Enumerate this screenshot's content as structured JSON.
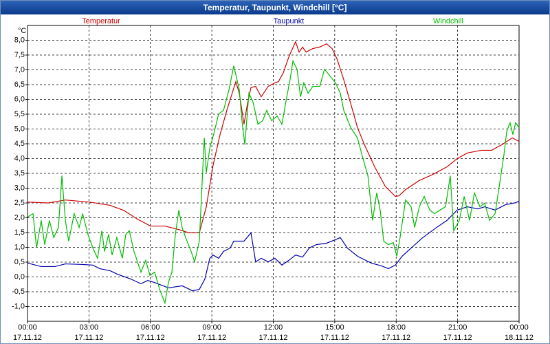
{
  "chart_data": {
    "type": "line",
    "title": "Temperatur, Taupunkt, Windchill [°C]",
    "ylabel": "°C",
    "ylim": [
      -1.5,
      8.5
    ],
    "yticks": [
      {
        "value": -1,
        "label": "-1,0"
      },
      {
        "value": -0.5,
        "label": "-0,5"
      },
      {
        "value": 0,
        "label": "0,0"
      },
      {
        "value": 0.5,
        "label": "0,5"
      },
      {
        "value": 1,
        "label": "1,0"
      },
      {
        "value": 1.5,
        "label": "1,5"
      },
      {
        "value": 2,
        "label": "2,0"
      },
      {
        "value": 2.5,
        "label": "2,5"
      },
      {
        "value": 3,
        "label": "3,0"
      },
      {
        "value": 3.5,
        "label": "3,5"
      },
      {
        "value": 4,
        "label": "4,0"
      },
      {
        "value": 4.5,
        "label": "4,5"
      },
      {
        "value": 5,
        "label": "5,0"
      },
      {
        "value": 5.5,
        "label": "5,5"
      },
      {
        "value": 6,
        "label": "6,0"
      },
      {
        "value": 6.5,
        "label": "6,5"
      },
      {
        "value": 7,
        "label": "7,0"
      },
      {
        "value": 7.5,
        "label": "7,5"
      },
      {
        "value": 8,
        "label": "8,0"
      }
    ],
    "xlim": [
      0,
      24
    ],
    "xticks": [
      {
        "value": 0,
        "label": "00:00",
        "date": "17.11.12"
      },
      {
        "value": 3,
        "label": "03:00",
        "date": "17.11.12"
      },
      {
        "value": 6,
        "label": "06:00",
        "date": "17.11.12"
      },
      {
        "value": 9,
        "label": "09:00",
        "date": "17.11.12"
      },
      {
        "value": 12,
        "label": "12:00",
        "date": "17.11.12"
      },
      {
        "value": 15,
        "label": "15:00",
        "date": "17.11.12"
      },
      {
        "value": 18,
        "label": "18:00",
        "date": "17.11.12"
      },
      {
        "value": 21,
        "label": "21:00",
        "date": "17.11.12"
      },
      {
        "value": 24,
        "label": "00:00",
        "date": "18.11.12"
      }
    ],
    "grid": true,
    "series": [
      {
        "name": "Temperatur",
        "color": "#cc0000",
        "x": [
          0,
          1.01,
          1.85,
          3.02,
          4.03,
          4.7,
          5.37,
          6.01,
          6.71,
          7.39,
          7.89,
          8.39,
          8.73,
          9.06,
          9.4,
          9.73,
          10.17,
          10.34,
          10.57,
          10.74,
          10.91,
          11.14,
          11.41,
          11.75,
          12.08,
          12.25,
          12.49,
          12.76,
          13.09,
          13.26,
          13.43,
          13.6,
          13.93,
          14.27,
          14.6,
          14.87,
          15.11,
          15.44,
          15.78,
          16.11,
          16.45,
          16.95,
          17.46,
          17.96,
          18.13,
          18.46,
          19.13,
          19.81,
          20.48,
          20.98,
          21.48,
          22.16,
          22.66,
          23.16,
          23.67,
          24.0
        ],
        "values": [
          2.53,
          2.5,
          2.6,
          2.53,
          2.42,
          2.25,
          1.95,
          1.72,
          1.72,
          1.6,
          1.49,
          1.49,
          2.37,
          3.77,
          4.81,
          5.63,
          6.6,
          6.21,
          5.16,
          5.86,
          6.4,
          6.44,
          6.09,
          6.44,
          6.56,
          6.6,
          6.9,
          7.44,
          7.95,
          7.6,
          7.77,
          7.6,
          7.72,
          7.77,
          7.88,
          7.72,
          7.37,
          6.67,
          5.86,
          5.05,
          4.47,
          3.72,
          3.07,
          2.72,
          2.74,
          2.95,
          3.26,
          3.47,
          3.72,
          4.0,
          4.19,
          4.28,
          4.28,
          4.47,
          4.7,
          4.58
        ]
      },
      {
        "name": "Taupunkt",
        "color": "#0000aa",
        "x": [
          0,
          0.67,
          1.34,
          1.85,
          2.69,
          3.19,
          3.52,
          4.03,
          4.36,
          5.04,
          5.54,
          5.87,
          6.21,
          6.88,
          7.55,
          8.06,
          8.39,
          8.66,
          8.9,
          9.06,
          9.33,
          9.57,
          9.9,
          10.07,
          10.57,
          10.91,
          11.14,
          11.41,
          11.75,
          12.08,
          12.42,
          12.76,
          13.09,
          13.43,
          13.76,
          14.1,
          14.6,
          15.11,
          15.27,
          15.61,
          16.11,
          16.78,
          17.29,
          17.62,
          17.96,
          18.29,
          18.8,
          19.3,
          19.97,
          20.48,
          20.98,
          21.48,
          21.99,
          22.32,
          22.83,
          23.33,
          23.84,
          24.0
        ],
        "values": [
          0.47,
          0.35,
          0.35,
          0.44,
          0.42,
          0.4,
          0.28,
          0.21,
          0.1,
          -0.07,
          -0.23,
          -0.12,
          -0.19,
          -0.37,
          -0.3,
          -0.47,
          -0.42,
          -0.07,
          0.63,
          0.74,
          0.63,
          0.86,
          0.98,
          1.21,
          1.21,
          1.49,
          0.51,
          0.63,
          0.51,
          0.63,
          0.4,
          0.56,
          0.74,
          0.67,
          0.98,
          1.09,
          1.14,
          1.28,
          1.33,
          0.98,
          0.7,
          0.47,
          0.37,
          0.28,
          0.4,
          0.7,
          1.02,
          1.33,
          1.67,
          1.91,
          2.26,
          2.37,
          2.3,
          2.37,
          2.26,
          2.44,
          2.51,
          2.56
        ]
      },
      {
        "name": "Windchill",
        "color": "#00bb00",
        "x": [
          0,
          0.27,
          0.44,
          0.67,
          0.84,
          1.07,
          1.28,
          1.51,
          1.68,
          1.85,
          2.01,
          2.28,
          2.52,
          2.69,
          2.95,
          3.19,
          3.42,
          3.63,
          3.76,
          3.96,
          4.13,
          4.36,
          4.63,
          4.8,
          4.97,
          5.2,
          5.37,
          5.54,
          5.77,
          5.98,
          6.21,
          6.45,
          6.71,
          6.88,
          7.05,
          7.22,
          7.39,
          7.55,
          7.72,
          7.99,
          8.16,
          8.39,
          8.63,
          8.73,
          8.9,
          9.13,
          9.33,
          9.57,
          9.84,
          10.07,
          10.34,
          10.47,
          10.61,
          10.81,
          11.01,
          11.25,
          11.48,
          11.68,
          11.92,
          12.19,
          12.42,
          12.66,
          12.82,
          12.96,
          13.16,
          13.33,
          13.49,
          13.7,
          13.93,
          14.27,
          14.5,
          14.77,
          15.04,
          15.27,
          15.44,
          15.78,
          16.11,
          16.38,
          16.62,
          16.85,
          17.05,
          17.22,
          17.39,
          17.62,
          17.86,
          18.03,
          18.19,
          18.46,
          18.73,
          18.9,
          19.13,
          19.37,
          19.64,
          19.87,
          20.14,
          20.41,
          20.64,
          20.81,
          21.08,
          21.32,
          21.58,
          21.82,
          22.09,
          22.32,
          22.56,
          22.83,
          23.06,
          23.26,
          23.4,
          23.56,
          23.7,
          23.83,
          24.0
        ],
        "values": [
          2.02,
          2.14,
          0.98,
          1.91,
          1.09,
          1.91,
          1.33,
          1.67,
          3.42,
          1.91,
          1.21,
          2.14,
          1.67,
          2.14,
          1.44,
          0.98,
          0.63,
          1.56,
          0.86,
          1.44,
          0.74,
          1.33,
          0.63,
          1.44,
          1.56,
          0.86,
          0.51,
          0.16,
          0.56,
          0.05,
          0.16,
          -0.42,
          -0.88,
          -0.19,
          0.16,
          1.44,
          2.26,
          1.67,
          1.33,
          0.86,
          0.51,
          1.21,
          4.7,
          3.53,
          4.35,
          4.93,
          5.51,
          5.63,
          6.33,
          7.14,
          6.33,
          5.28,
          4.47,
          6.21,
          5.91,
          5.16,
          5.28,
          5.63,
          5.28,
          5.44,
          5.16,
          6.09,
          6.67,
          7.3,
          7.02,
          6.09,
          6.56,
          6.21,
          6.44,
          6.44,
          7.02,
          6.79,
          6.56,
          6.21,
          5.63,
          5.05,
          4.7,
          4.0,
          3.42,
          1.91,
          2.84,
          2.26,
          1.21,
          1.09,
          1.16,
          0.7,
          1.33,
          2.6,
          2.37,
          1.67,
          2.37,
          2.72,
          2.26,
          2.14,
          2.26,
          2.37,
          3.42,
          1.56,
          1.91,
          2.72,
          1.91,
          2.84,
          2.37,
          2.49,
          1.91,
          2.14,
          3.19,
          4.12,
          4.93,
          5.21,
          4.81,
          5.21,
          5.05
        ]
      }
    ]
  }
}
